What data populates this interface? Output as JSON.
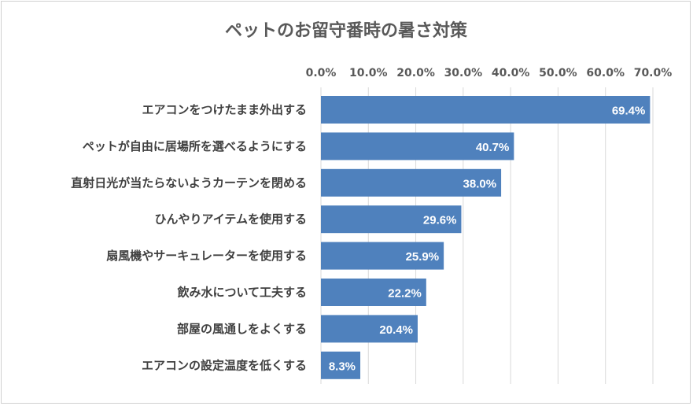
{
  "chart_data": {
    "type": "bar",
    "orientation": "horizontal",
    "title": "ペットのお留守番時の暑さ対策",
    "xlim": [
      0,
      70
    ],
    "tick_values": [
      0,
      10,
      20,
      30,
      40,
      50,
      60,
      70
    ],
    "tick_labels": [
      "0.0%",
      "10.0%",
      "20.0%",
      "30.0%",
      "40.0%",
      "50.0%",
      "60.0%",
      "70.0%"
    ],
    "x_axis_position": "top",
    "grid": true,
    "legend": "none",
    "categories": [
      "エアコンをつけたまま外出する",
      "ペットが自由に居場所を選べるようにする",
      "直射日光が当たらないようカーテンを閉める",
      "ひんやりアイテムを使用する",
      "扇風機やサーキュレーターを使用する",
      "飲み水について工夫する",
      "部屋の風通しをよくする",
      "エアコンの設定温度を低くする"
    ],
    "values": [
      69.4,
      40.7,
      38.0,
      29.6,
      25.9,
      22.2,
      20.4,
      8.3
    ],
    "data_labels": [
      "69.4%",
      "40.7%",
      "38.0%",
      "29.6%",
      "25.9%",
      "22.2%",
      "20.4%",
      "8.3%"
    ],
    "colors": {
      "bar": "#4f81bd",
      "grid": "#d9d9d9",
      "title": "#595959",
      "label": "#404040"
    }
  }
}
